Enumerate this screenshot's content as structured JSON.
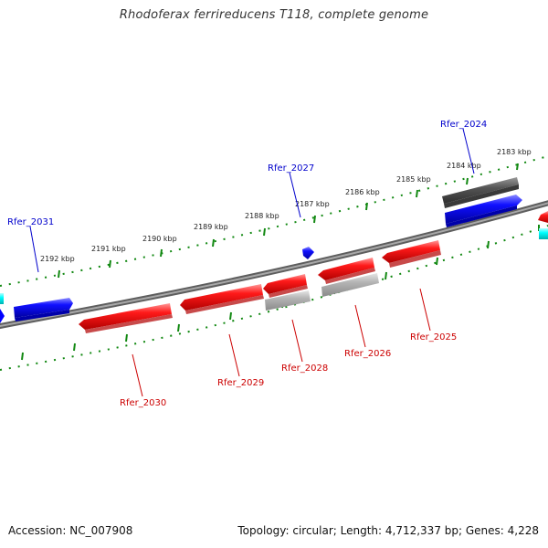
{
  "header": {
    "title": "Rhodoferax ferrireducens T118, complete genome"
  },
  "footer": {
    "accession": "Accession: NC_007908",
    "summary": "Topology: circular; Length: 4,712,337 bp; Genes: 4,228"
  },
  "ticks": [
    "2183 kbp",
    "2184 kbp",
    "2185 kbp",
    "2186 kbp",
    "2187 kbp",
    "2188 kbp",
    "2189 kbp",
    "2190 kbp",
    "2191 kbp",
    "2192 kbp"
  ],
  "gene_labels": {
    "rfer_2024": "Rfer_2024",
    "rfer_2025": "Rfer_2025",
    "rfer_2026": "Rfer_2026",
    "rfer_2027": "Rfer_2027",
    "rfer_2028": "Rfer_2028",
    "rfer_2029": "Rfer_2029",
    "rfer_2030": "Rfer_2030",
    "rfer_2031": "Rfer_2031"
  },
  "colors": {
    "forward_gene": "#0000ff",
    "reverse_gene": "#ff0000",
    "gray_feature": "#555555",
    "light_feature": "#aaaaaa",
    "cyan_feature": "#00ffff",
    "forward_label": "#0000cc",
    "reverse_label": "#cc0000",
    "scale_dots": "#118811",
    "backbone": "#777777"
  }
}
